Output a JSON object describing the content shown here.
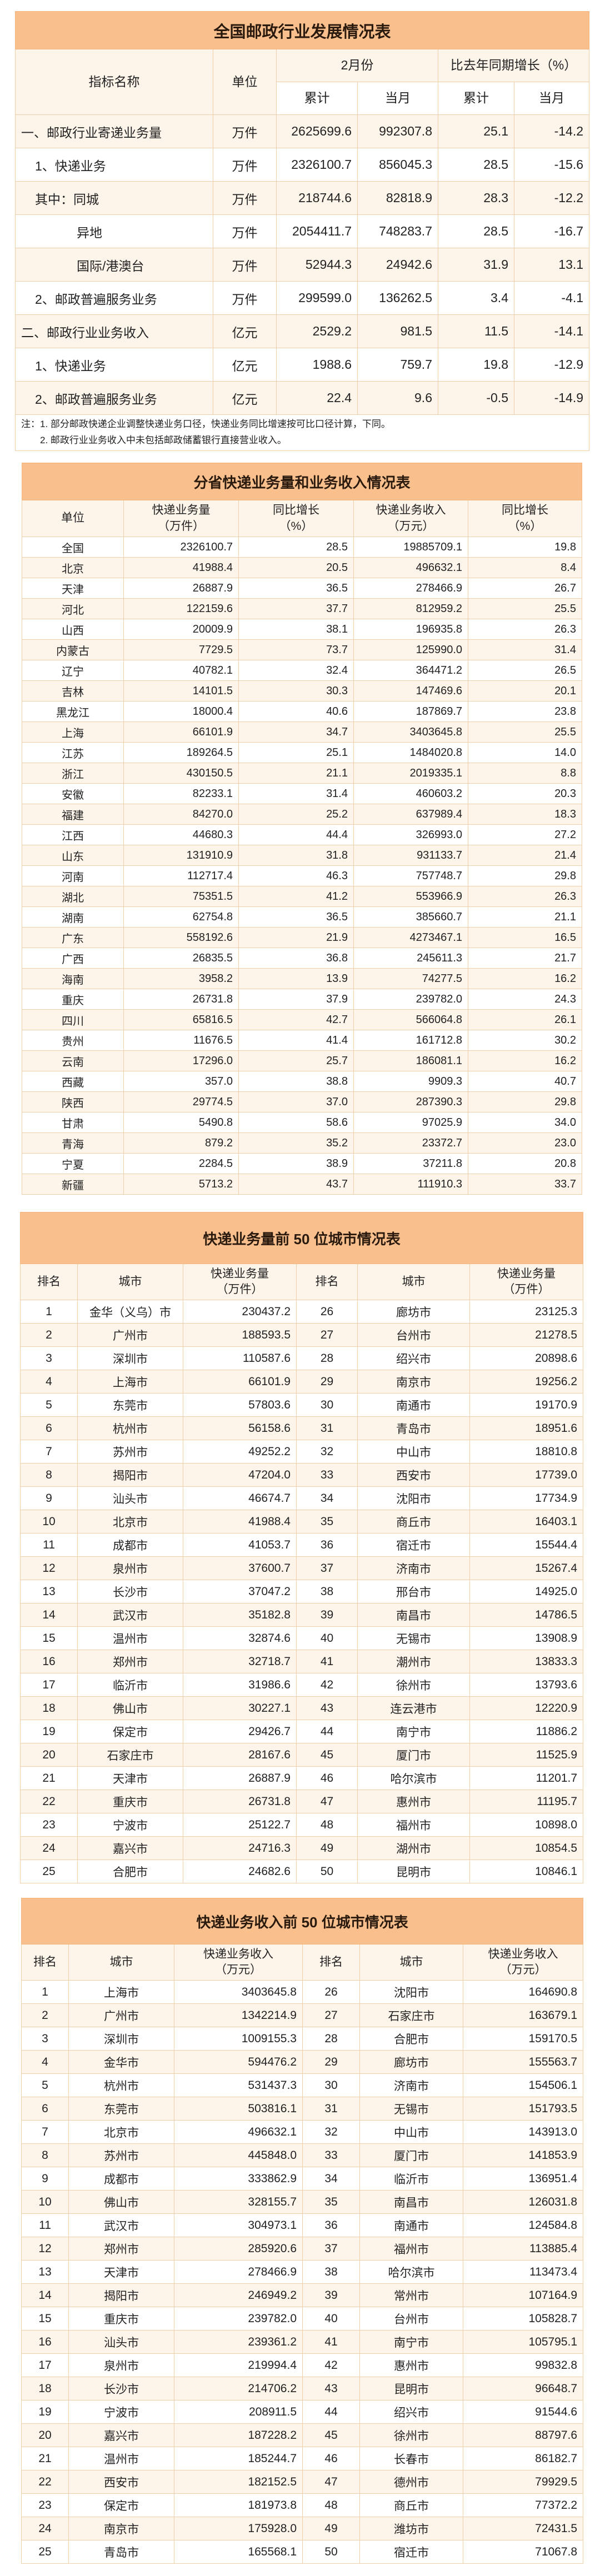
{
  "colors": {
    "title_band": "#f9c08e",
    "row_alt": "#fdf4ea",
    "border": "#f1cfa8"
  },
  "table1": {
    "title": "全国邮政行业发展情况表",
    "headers": {
      "name": "指标名称",
      "unit": "单位",
      "period": "2月份",
      "growth": "比去年同期增长（%）",
      "cum": "累计",
      "month": "当月",
      "cum2": "累计",
      "month2": "当月"
    },
    "rows": [
      [
        "一、邮政行业寄递业务量",
        "万件",
        "2625699.6",
        "992307.8",
        "25.1",
        "-14.2"
      ],
      [
        "1、快递业务",
        "万件",
        "2326100.7",
        "856045.3",
        "28.5",
        "-15.6"
      ],
      [
        "其中：同城",
        "万件",
        "218744.6",
        "82818.9",
        "28.3",
        "-12.2"
      ],
      [
        "异地",
        "万件",
        "2054411.7",
        "748283.7",
        "28.5",
        "-16.7"
      ],
      [
        "国际/港澳台",
        "万件",
        "52944.3",
        "24942.6",
        "31.9",
        "13.1"
      ],
      [
        "2、邮政普遍服务业务",
        "万件",
        "299599.0",
        "136262.5",
        "3.4",
        "-4.1"
      ],
      [
        "二、邮政行业业务收入",
        "亿元",
        "2529.2",
        "981.5",
        "11.5",
        "-14.1"
      ],
      [
        "1、快递业务",
        "亿元",
        "1988.6",
        "759.7",
        "19.8",
        "-12.9"
      ],
      [
        "2、邮政普遍服务业务",
        "亿元",
        "22.4",
        "9.6",
        "-0.5",
        "-14.9"
      ]
    ],
    "note": "注：1. 部分邮政快递企业调整快递业务口径，快递业务同比增速按可比口径计算，下同。\n　　2. 邮政行业业务收入中未包括邮政储蓄银行直接营业收入。"
  },
  "table2": {
    "title": "分省快递业务量和业务收入情况表",
    "headers": [
      "单位",
      "快递业务量\n（万件）",
      "同比增长\n（%）",
      "快递业务收入\n（万元）",
      "同比增长\n（%）"
    ],
    "rows": [
      [
        "全国",
        "2326100.7",
        "28.5",
        "19885709.1",
        "19.8"
      ],
      [
        "北京",
        "41988.4",
        "20.5",
        "496632.1",
        "8.4"
      ],
      [
        "天津",
        "26887.9",
        "36.5",
        "278466.9",
        "26.7"
      ],
      [
        "河北",
        "122159.6",
        "37.7",
        "812959.2",
        "25.5"
      ],
      [
        "山西",
        "20009.9",
        "38.1",
        "196935.8",
        "26.3"
      ],
      [
        "内蒙古",
        "7729.5",
        "73.7",
        "125990.0",
        "31.4"
      ],
      [
        "辽宁",
        "40782.1",
        "32.4",
        "364471.2",
        "26.5"
      ],
      [
        "吉林",
        "14101.5",
        "30.3",
        "147469.6",
        "20.1"
      ],
      [
        "黑龙江",
        "18000.4",
        "40.6",
        "187869.7",
        "23.8"
      ],
      [
        "上海",
        "66101.9",
        "34.7",
        "3403645.8",
        "25.5"
      ],
      [
        "江苏",
        "189264.5",
        "25.1",
        "1484020.8",
        "14.0"
      ],
      [
        "浙江",
        "430150.5",
        "21.1",
        "2019335.1",
        "8.8"
      ],
      [
        "安徽",
        "82233.1",
        "31.4",
        "460603.2",
        "20.3"
      ],
      [
        "福建",
        "84270.0",
        "25.2",
        "637989.4",
        "18.3"
      ],
      [
        "江西",
        "44680.3",
        "44.4",
        "326993.0",
        "27.2"
      ],
      [
        "山东",
        "131910.9",
        "31.8",
        "931133.7",
        "21.4"
      ],
      [
        "河南",
        "112717.4",
        "46.3",
        "757748.7",
        "29.8"
      ],
      [
        "湖北",
        "75351.5",
        "41.2",
        "553966.9",
        "26.3"
      ],
      [
        "湖南",
        "62754.8",
        "36.5",
        "385660.7",
        "21.1"
      ],
      [
        "广东",
        "558192.6",
        "21.9",
        "4273467.1",
        "16.5"
      ],
      [
        "广西",
        "26835.5",
        "36.8",
        "245611.3",
        "21.7"
      ],
      [
        "海南",
        "3958.2",
        "13.9",
        "74277.5",
        "16.2"
      ],
      [
        "重庆",
        "26731.8",
        "37.9",
        "239782.0",
        "24.3"
      ],
      [
        "四川",
        "65816.5",
        "42.7",
        "566064.8",
        "26.1"
      ],
      [
        "贵州",
        "11676.5",
        "41.4",
        "161712.8",
        "30.2"
      ],
      [
        "云南",
        "17296.0",
        "25.7",
        "186081.1",
        "16.2"
      ],
      [
        "西藏",
        "357.0",
        "38.8",
        "9909.3",
        "40.7"
      ],
      [
        "陕西",
        "29774.5",
        "37.0",
        "287390.3",
        "29.8"
      ],
      [
        "甘肃",
        "5490.8",
        "58.6",
        "97025.9",
        "34.0"
      ],
      [
        "青海",
        "879.2",
        "35.2",
        "23372.7",
        "23.0"
      ],
      [
        "宁夏",
        "2284.5",
        "38.9",
        "37211.8",
        "20.8"
      ],
      [
        "新疆",
        "5713.2",
        "43.7",
        "111910.3",
        "33.7"
      ]
    ]
  },
  "table3": {
    "title": "快递业务量前 50 位城市情况表",
    "headers": [
      "排名",
      "城市",
      "快递业务量\n（万件）",
      "排名",
      "城市",
      "快递业务量\n（万件）"
    ],
    "rows": [
      [
        "1",
        "金华（义乌）市",
        "230437.2",
        "26",
        "廊坊市",
        "23125.3"
      ],
      [
        "2",
        "广州市",
        "188593.5",
        "27",
        "台州市",
        "21278.5"
      ],
      [
        "3",
        "深圳市",
        "110587.6",
        "28",
        "绍兴市",
        "20898.6"
      ],
      [
        "4",
        "上海市",
        "66101.9",
        "29",
        "南京市",
        "19256.2"
      ],
      [
        "5",
        "东莞市",
        "57803.6",
        "30",
        "南通市",
        "19170.9"
      ],
      [
        "6",
        "杭州市",
        "56158.6",
        "31",
        "青岛市",
        "18951.6"
      ],
      [
        "7",
        "苏州市",
        "49252.2",
        "32",
        "中山市",
        "18810.8"
      ],
      [
        "8",
        "揭阳市",
        "47204.0",
        "33",
        "西安市",
        "17739.0"
      ],
      [
        "9",
        "汕头市",
        "46674.7",
        "34",
        "沈阳市",
        "17734.9"
      ],
      [
        "10",
        "北京市",
        "41988.4",
        "35",
        "商丘市",
        "16403.1"
      ],
      [
        "11",
        "成都市",
        "41053.7",
        "36",
        "宿迁市",
        "15544.4"
      ],
      [
        "12",
        "泉州市",
        "37600.7",
        "37",
        "济南市",
        "15267.4"
      ],
      [
        "13",
        "长沙市",
        "37047.2",
        "38",
        "邢台市",
        "14925.0"
      ],
      [
        "14",
        "武汉市",
        "35182.8",
        "39",
        "南昌市",
        "14786.5"
      ],
      [
        "15",
        "温州市",
        "32874.6",
        "40",
        "无锡市",
        "13908.9"
      ],
      [
        "16",
        "郑州市",
        "32718.7",
        "41",
        "潮州市",
        "13833.3"
      ],
      [
        "17",
        "临沂市",
        "31986.6",
        "42",
        "徐州市",
        "13793.6"
      ],
      [
        "18",
        "佛山市",
        "30227.1",
        "43",
        "连云港市",
        "12220.9"
      ],
      [
        "19",
        "保定市",
        "29426.7",
        "44",
        "南宁市",
        "11886.2"
      ],
      [
        "20",
        "石家庄市",
        "28167.6",
        "45",
        "厦门市",
        "11525.9"
      ],
      [
        "21",
        "天津市",
        "26887.9",
        "46",
        "哈尔滨市",
        "11201.7"
      ],
      [
        "22",
        "重庆市",
        "26731.8",
        "47",
        "惠州市",
        "11195.7"
      ],
      [
        "23",
        "宁波市",
        "25122.7",
        "48",
        "福州市",
        "10898.0"
      ],
      [
        "24",
        "嘉兴市",
        "24716.3",
        "49",
        "湖州市",
        "10854.5"
      ],
      [
        "25",
        "合肥市",
        "24682.6",
        "50",
        "昆明市",
        "10846.1"
      ]
    ]
  },
  "table4": {
    "title": "快递业务收入前 50 位城市情况表",
    "headers": [
      "排名",
      "城市",
      "快递业务收入\n（万元）",
      "排名",
      "城市",
      "快递业务收入\n（万元）"
    ],
    "rows": [
      [
        "1",
        "上海市",
        "3403645.8",
        "26",
        "沈阳市",
        "164690.8"
      ],
      [
        "2",
        "广州市",
        "1342214.9",
        "27",
        "石家庄市",
        "163679.1"
      ],
      [
        "3",
        "深圳市",
        "1009155.3",
        "28",
        "合肥市",
        "159170.5"
      ],
      [
        "4",
        "金华市",
        "594476.2",
        "29",
        "廊坊市",
        "155563.7"
      ],
      [
        "5",
        "杭州市",
        "531437.3",
        "30",
        "济南市",
        "154506.1"
      ],
      [
        "6",
        "东莞市",
        "503816.1",
        "31",
        "无锡市",
        "151793.5"
      ],
      [
        "7",
        "北京市",
        "496632.1",
        "32",
        "中山市",
        "143913.0"
      ],
      [
        "8",
        "苏州市",
        "445848.0",
        "33",
        "厦门市",
        "141853.9"
      ],
      [
        "9",
        "成都市",
        "333862.9",
        "34",
        "临沂市",
        "136951.4"
      ],
      [
        "10",
        "佛山市",
        "328155.7",
        "35",
        "南昌市",
        "126031.8"
      ],
      [
        "11",
        "武汉市",
        "304973.1",
        "36",
        "南通市",
        "124584.8"
      ],
      [
        "12",
        "郑州市",
        "285920.6",
        "37",
        "福州市",
        "113885.4"
      ],
      [
        "13",
        "天津市",
        "278466.9",
        "38",
        "哈尔滨市",
        "113473.4"
      ],
      [
        "14",
        "揭阳市",
        "246949.2",
        "39",
        "常州市",
        "107164.9"
      ],
      [
        "15",
        "重庆市",
        "239782.0",
        "40",
        "台州市",
        "105828.7"
      ],
      [
        "16",
        "汕头市",
        "239361.2",
        "41",
        "南宁市",
        "105795.1"
      ],
      [
        "17",
        "泉州市",
        "219994.4",
        "42",
        "惠州市",
        "99832.8"
      ],
      [
        "18",
        "长沙市",
        "214706.2",
        "43",
        "昆明市",
        "96648.7"
      ],
      [
        "19",
        "宁波市",
        "208911.5",
        "44",
        "绍兴市",
        "91544.6"
      ],
      [
        "20",
        "嘉兴市",
        "187228.2",
        "45",
        "徐州市",
        "88797.6"
      ],
      [
        "21",
        "温州市",
        "185244.7",
        "46",
        "长春市",
        "86182.7"
      ],
      [
        "22",
        "西安市",
        "182152.5",
        "47",
        "德州市",
        "79929.5"
      ],
      [
        "23",
        "保定市",
        "181973.8",
        "48",
        "商丘市",
        "77372.2"
      ],
      [
        "24",
        "南京市",
        "175928.0",
        "49",
        "潍坊市",
        "72431.5"
      ],
      [
        "25",
        "青岛市",
        "165568.1",
        "50",
        "宿迁市",
        "71067.8"
      ]
    ]
  }
}
